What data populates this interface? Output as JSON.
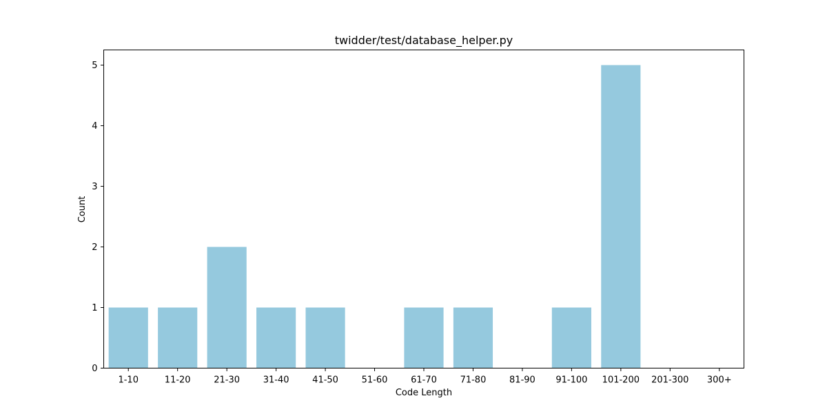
{
  "chart_data": {
    "type": "bar",
    "title": "twidder/test/database_helper.py",
    "xlabel": "Code Length",
    "ylabel": "Count",
    "categories": [
      "1-10",
      "11-20",
      "21-30",
      "31-40",
      "41-50",
      "51-60",
      "61-70",
      "71-80",
      "81-90",
      "91-100",
      "101-200",
      "201-300",
      "300+"
    ],
    "values": [
      1,
      1,
      2,
      1,
      1,
      0,
      1,
      1,
      0,
      1,
      5,
      0,
      0
    ],
    "ylim": [
      0,
      5.25
    ],
    "yticks": [
      0,
      1,
      2,
      3,
      4,
      5
    ],
    "grid": false,
    "bar_color": "#95c9de"
  }
}
